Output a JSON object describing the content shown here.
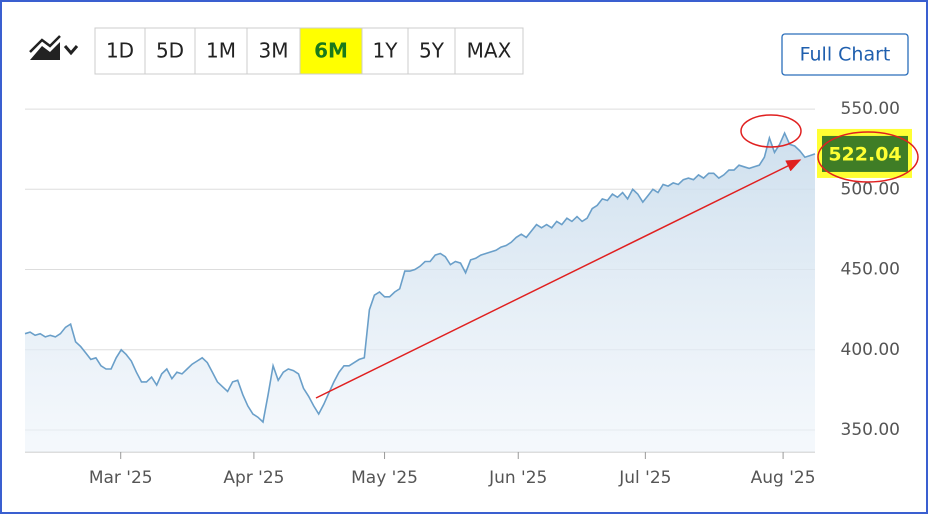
{
  "toolbar": {
    "ranges": [
      "1D",
      "5D",
      "1M",
      "3M",
      "6M",
      "1Y",
      "5Y",
      "MAX"
    ],
    "active": 4,
    "full_chart": "Full Chart"
  },
  "chart_data": {
    "type": "area",
    "color": "#6a9fc9",
    "values": [
      410,
      411,
      409,
      410,
      408,
      409,
      408,
      410,
      414,
      416,
      405,
      402,
      398,
      394,
      395,
      390,
      388,
      388,
      395,
      400,
      397,
      393,
      386,
      380,
      380,
      383,
      378,
      385,
      388,
      382,
      386,
      385,
      388,
      391,
      393,
      395,
      392,
      386,
      380,
      377,
      374,
      380,
      381,
      372,
      365,
      360,
      358,
      355,
      372,
      390,
      381,
      386,
      388,
      387,
      385,
      376,
      371,
      365,
      360,
      366,
      373,
      380,
      386,
      390,
      390,
      392,
      394,
      395,
      425,
      434,
      436,
      433,
      433,
      436,
      438,
      449,
      449,
      450,
      452,
      455,
      455,
      459,
      460,
      458,
      453,
      455,
      454,
      448,
      456,
      457,
      459,
      460,
      461,
      462,
      464,
      465,
      467,
      470,
      472,
      470,
      474,
      478,
      476,
      478,
      476,
      480,
      478,
      482,
      480,
      483,
      480,
      482,
      488,
      490,
      494,
      493,
      497,
      495,
      498,
      494,
      500,
      497,
      492,
      496,
      500,
      498,
      503,
      502,
      504,
      503,
      506,
      507,
      506,
      509,
      507,
      510,
      510,
      507,
      509,
      512,
      512,
      515,
      514,
      513,
      514,
      515,
      520,
      532,
      523,
      528,
      535,
      528,
      527,
      524,
      520,
      521,
      522.04
    ],
    "xlim": [
      0,
      156
    ],
    "xticks": [
      {
        "value": 18.9,
        "label": "Mar '25"
      },
      {
        "value": 45.2,
        "label": "Apr '25"
      },
      {
        "value": 71,
        "label": "May '25"
      },
      {
        "value": 97.4,
        "label": "Jun '25"
      },
      {
        "value": 122.5,
        "label": "Jul '25"
      },
      {
        "value": 149.7,
        "label": "Aug '25"
      }
    ],
    "ylim": [
      336.3,
      565
    ],
    "yticks": [
      {
        "value": 350,
        "label": "350.00"
      },
      {
        "value": 400,
        "label": "400.00"
      },
      {
        "value": 450,
        "label": "450.00"
      },
      {
        "value": 500,
        "label": "500.00"
      },
      {
        "value": 550,
        "label": "550.00"
      }
    ],
    "grid": true
  }
}
